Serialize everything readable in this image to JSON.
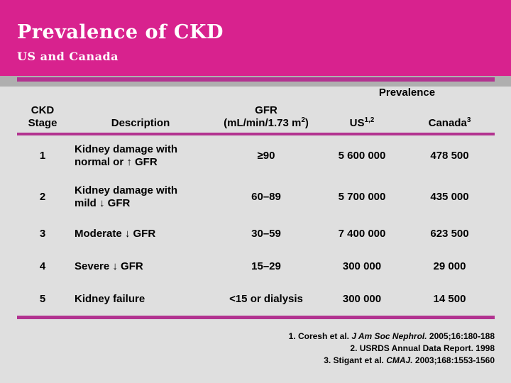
{
  "slide": {
    "title": "Prevalence of CKD",
    "subtitle": "US and Canada"
  },
  "colors": {
    "band": "#D8228E",
    "rule": "#B23390",
    "strip": "#AFAFAF",
    "background": "#DFDFDF",
    "title_text": "#FFFFFF",
    "body_text": "#000000"
  },
  "table": {
    "prevalence_label": "Prevalence",
    "headers": {
      "stage_line1": "CKD",
      "stage_line2": "Stage",
      "description": "Description",
      "gfr_line1": "GFR",
      "gfr_unit_prefix": "(mL/min/1.73 m",
      "gfr_unit_sup": "2",
      "gfr_unit_suffix": ")",
      "us_label": "US",
      "us_sup": "1,2",
      "canada_label": "Canada",
      "canada_sup": "3"
    },
    "rows": [
      {
        "stage": "1",
        "description_line1": "Kidney damage with",
        "description_line2": "normal or ↑ GFR",
        "gfr": "≥90",
        "us": "5 600 000",
        "canada": "478 500"
      },
      {
        "stage": "2",
        "description_line1": "Kidney damage with",
        "description_line2": "mild ↓ GFR",
        "gfr": "60–89",
        "us": "5 700 000",
        "canada": "435 000"
      },
      {
        "stage": "3",
        "description_line1": "Moderate ↓ GFR",
        "description_line2": "",
        "gfr": "30–59",
        "us": "7 400 000",
        "canada": "623 500"
      },
      {
        "stage": "4",
        "description_line1": "Severe ↓ GFR",
        "description_line2": "",
        "gfr": "15–29",
        "us": "300 000",
        "canada": "29 000"
      },
      {
        "stage": "5",
        "description_line1": "Kidney failure",
        "description_line2": "",
        "gfr": "<15 or dialysis",
        "us": "300 000",
        "canada": "14 500"
      }
    ]
  },
  "footnotes": [
    {
      "prefix": "1. Coresh et al. ",
      "italic": "J Am Soc Nephrol.",
      "suffix": " 2005;16:180-188"
    },
    {
      "prefix": "2. USRDS Annual Data Report. 1998",
      "italic": "",
      "suffix": ""
    },
    {
      "prefix": "3. Stigant et al. ",
      "italic": "CMAJ.",
      "suffix": " 2003;168:1553-1560"
    }
  ]
}
